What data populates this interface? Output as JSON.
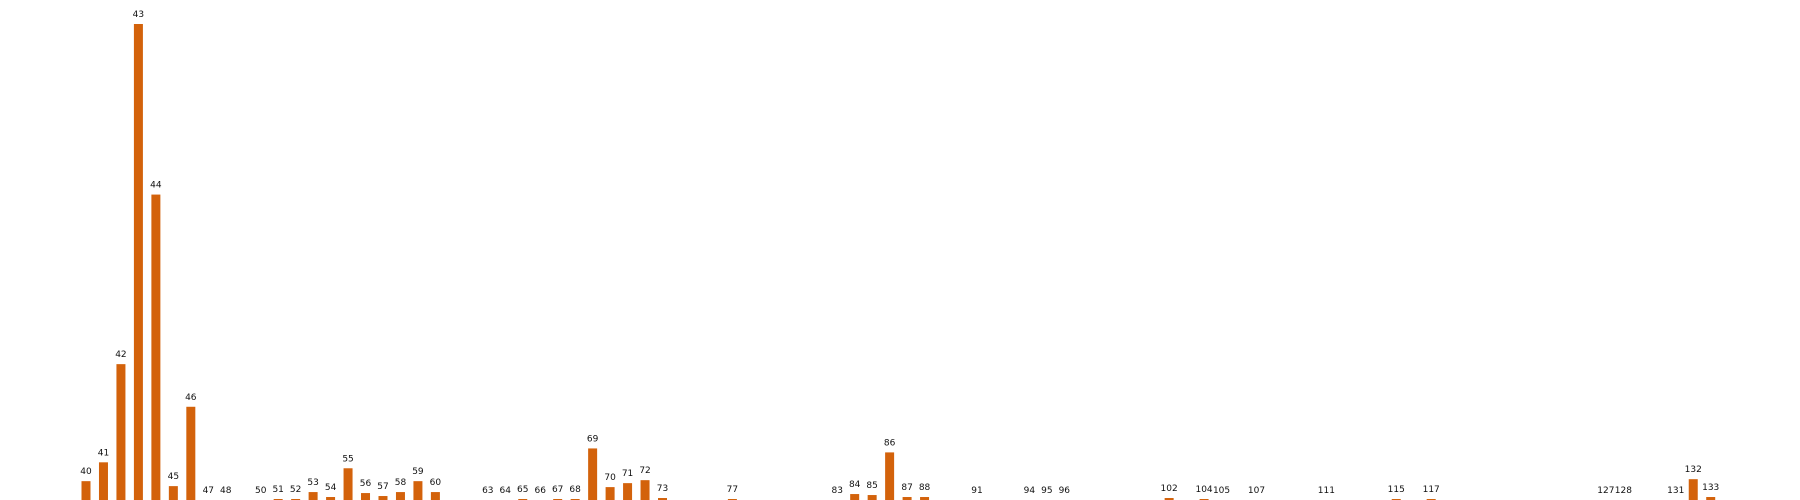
{
  "chart_data": {
    "type": "bar",
    "title": "",
    "xlabel": "",
    "ylabel": "",
    "ylim": [
      0,
      48
    ],
    "grid": false,
    "legend": "none",
    "bar_color": "#d3620b",
    "label_color": "#111111",
    "background": "#ffffff",
    "x_range": [
      40,
      133
    ],
    "categories": [
      "40",
      "41",
      "42",
      "43",
      "44",
      "45",
      "46",
      "47",
      "48",
      "50",
      "51",
      "52",
      "53",
      "54",
      "55",
      "56",
      "57",
      "58",
      "59",
      "60",
      "63",
      "64",
      "65",
      "66",
      "67",
      "68",
      "69",
      "70",
      "71",
      "72",
      "73",
      "77",
      "83",
      "84",
      "85",
      "86",
      "87",
      "88",
      "91",
      "94",
      "95",
      "96",
      "102",
      "104",
      "105",
      "107",
      "111",
      "115",
      "117",
      "127",
      "128",
      "131",
      "132",
      "133"
    ],
    "x": [
      40,
      41,
      42,
      43,
      44,
      45,
      46,
      47,
      48,
      50,
      51,
      52,
      53,
      54,
      55,
      56,
      57,
      58,
      59,
      60,
      63,
      64,
      65,
      66,
      67,
      68,
      69,
      70,
      71,
      72,
      73,
      77,
      83,
      84,
      85,
      86,
      87,
      88,
      91,
      94,
      95,
      96,
      102,
      104,
      105,
      107,
      111,
      115,
      117,
      127,
      128,
      131,
      132,
      133
    ],
    "values": [
      1.9,
      3.8,
      13.7,
      48.0,
      30.8,
      1.4,
      9.4,
      0,
      0,
      0,
      0.1,
      0.1,
      0.8,
      0.3,
      3.2,
      0.7,
      0.4,
      0.8,
      1.9,
      0.8,
      0,
      0,
      0.1,
      0,
      0.1,
      0.1,
      5.2,
      1.3,
      1.7,
      2.0,
      0.2,
      0.1,
      0,
      0.6,
      0.5,
      4.8,
      0.3,
      0.3,
      0,
      0,
      0,
      0,
      0.2,
      0.1,
      0,
      0,
      0,
      0.1,
      0.1,
      0,
      0,
      0,
      2.1,
      0.3
    ]
  }
}
